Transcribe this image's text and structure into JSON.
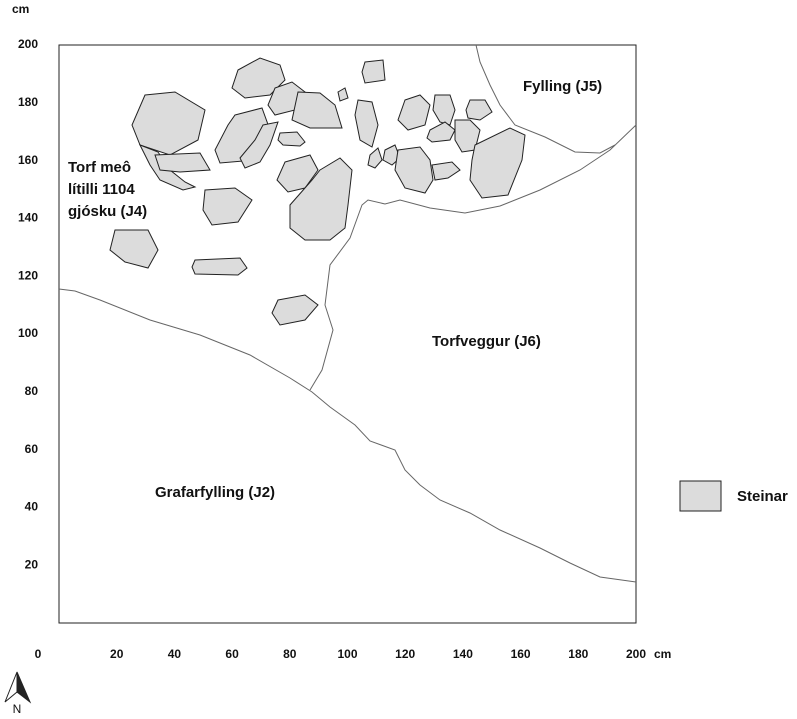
{
  "axes": {
    "y_unit": "cm",
    "x_unit": "cm",
    "origin": "0",
    "x_ticks": [
      20,
      40,
      60,
      80,
      100,
      120,
      140,
      160,
      180,
      200
    ],
    "y_ticks": [
      20,
      40,
      60,
      80,
      100,
      120,
      140,
      160,
      180,
      200
    ]
  },
  "regions": {
    "j4": [
      "Torf meô",
      "lítilli 1104",
      "gjósku (J4)"
    ],
    "j5": "Fylling (J5)",
    "j6": "Torfveggur (J6)",
    "j2": "Grafarfylling (J2)"
  },
  "legend": {
    "label": "Steinar"
  },
  "north": "N"
}
